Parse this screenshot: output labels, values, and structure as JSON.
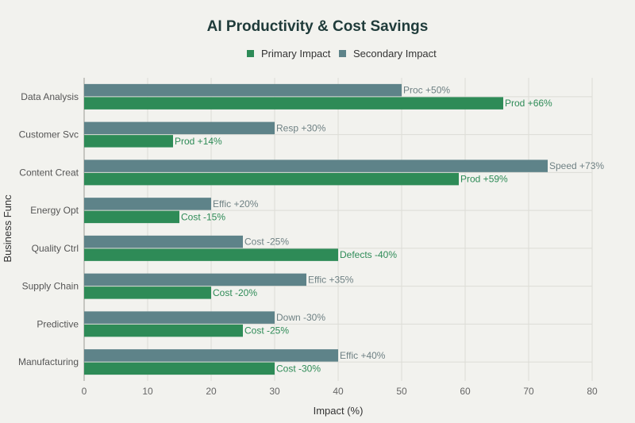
{
  "chart_data": {
    "type": "bar",
    "orientation": "horizontal",
    "title": "AI Productivity & Cost Savings",
    "xlabel": "Impact (%)",
    "ylabel": "Business Func",
    "xlim": [
      0,
      80
    ],
    "xticks": [
      0,
      10,
      20,
      30,
      40,
      50,
      60,
      70,
      80
    ],
    "grid": true,
    "legend_position": "top-center",
    "categories": [
      "Data Analysis",
      "Customer Svc",
      "Content Creat",
      "Energy Opt",
      "Quality Ctrl",
      "Supply Chain",
      "Predictive",
      "Manufacturing"
    ],
    "series": [
      {
        "name": "Primary Impact",
        "color": "#2e8b57",
        "values": [
          66,
          14,
          59,
          15,
          40,
          20,
          25,
          30
        ],
        "labels": [
          "Prod +66%",
          "Prod +14%",
          "Prod +59%",
          "Cost -15%",
          "Defects -40%",
          "Cost -20%",
          "Cost -25%",
          "Cost -30%"
        ]
      },
      {
        "name": "Secondary Impact",
        "color": "#5e8389",
        "values": [
          50,
          30,
          73,
          20,
          25,
          35,
          30,
          40
        ],
        "labels": [
          "Proc +50%",
          "Resp +30%",
          "Speed +73%",
          "Effic +20%",
          "Cost -25%",
          "Effic +35%",
          "Down -30%",
          "Effic +40%"
        ]
      }
    ]
  }
}
